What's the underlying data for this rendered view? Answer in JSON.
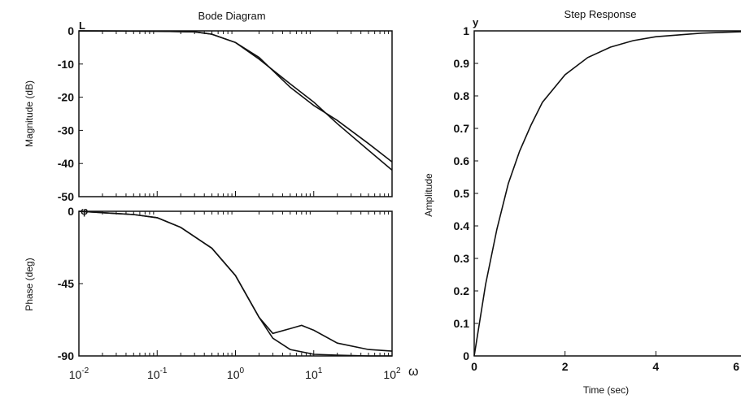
{
  "chart_data": [
    {
      "type": "line",
      "title": "Bode Diagram",
      "panel": "magnitude",
      "xscale": "log",
      "xlim": [
        0.01,
        100
      ],
      "ylim": [
        -50,
        0
      ],
      "ylabel": "Magnitude (dB)",
      "corner_label": "L",
      "ytick_labels": [
        "0",
        "-10",
        "-20",
        "-30",
        "-40",
        "-50"
      ],
      "ytick_values": [
        0,
        -10,
        -20,
        -30,
        -40,
        -50
      ],
      "series": [
        {
          "x": [
            0.01,
            0.1,
            0.3,
            0.5,
            1,
            2,
            5,
            10,
            20,
            50,
            100
          ],
          "y": [
            0,
            -0.1,
            -0.3,
            -1,
            -3.5,
            -8,
            -17,
            -22.5,
            -27,
            -34,
            -39.5
          ]
        },
        {
          "x": [
            0.01,
            0.1,
            0.3,
            0.5,
            1,
            2,
            5,
            10,
            20,
            50,
            100
          ],
          "y": [
            0,
            -0.1,
            -0.3,
            -1,
            -3.5,
            -8.5,
            -16,
            -21.5,
            -28,
            -36,
            -42
          ]
        }
      ]
    },
    {
      "type": "line",
      "panel": "phase",
      "xscale": "log",
      "xlim": [
        0.01,
        100
      ],
      "ylim": [
        -90,
        0
      ],
      "ylabel": "Phase (deg)",
      "corner_label": "φ",
      "xlabel_symbol": "ω",
      "xtick_bases": [
        "10",
        "10",
        "10",
        "10",
        "10"
      ],
      "xtick_exps": [
        "-2",
        "-1",
        "0",
        "1",
        "2"
      ],
      "xtick_values": [
        0.01,
        0.1,
        1,
        10,
        100
      ],
      "ytick_labels": [
        "0",
        "-45",
        "-90"
      ],
      "ytick_values": [
        0,
        -45,
        -90
      ],
      "series": [
        {
          "x": [
            0.01,
            0.05,
            0.1,
            0.2,
            0.5,
            1,
            2,
            3,
            5,
            7,
            10,
            20,
            50,
            100
          ],
          "y": [
            0,
            -2,
            -4,
            -10,
            -23,
            -40,
            -66,
            -76,
            -73,
            -71,
            -74,
            -82,
            -86,
            -87
          ]
        },
        {
          "x": [
            0.01,
            0.05,
            0.1,
            0.2,
            0.5,
            1,
            2,
            3,
            5,
            10,
            20,
            50,
            100
          ],
          "y": [
            0,
            -2,
            -4,
            -10,
            -23,
            -40,
            -66,
            -79,
            -86,
            -89,
            -89.5,
            -90,
            -90
          ]
        }
      ]
    },
    {
      "type": "line",
      "title": "Step Response",
      "xlabel": "Time (sec)",
      "ylabel": "Amplitude",
      "corner_label": "y",
      "xlim": [
        0,
        6
      ],
      "ylim": [
        0,
        1
      ],
      "xtick_labels": [
        "0",
        "2",
        "4",
        "6"
      ],
      "xtick_values": [
        0,
        2,
        4,
        6
      ],
      "ytick_labels": [
        "0",
        "0.1",
        "0.2",
        "0.3",
        "0.4",
        "0.5",
        "0.6",
        "0.7",
        "0.8",
        "0.9",
        "1"
      ],
      "ytick_values": [
        0,
        0.1,
        0.2,
        0.3,
        0.4,
        0.5,
        0.6,
        0.7,
        0.8,
        0.9,
        1
      ],
      "series": [
        {
          "x": [
            0,
            0.25,
            0.5,
            0.75,
            1,
            1.25,
            1.5,
            2,
            2.5,
            3,
            3.5,
            4,
            5,
            6
          ],
          "y": [
            0,
            0.22,
            0.39,
            0.53,
            0.63,
            0.71,
            0.78,
            0.865,
            0.918,
            0.95,
            0.97,
            0.982,
            0.993,
            0.998
          ]
        }
      ]
    }
  ]
}
